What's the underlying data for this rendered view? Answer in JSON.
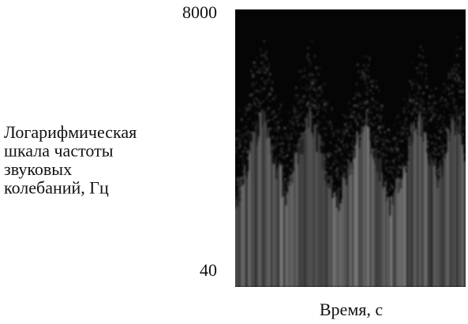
{
  "chart_data": {
    "type": "spectrogram",
    "ylabel": [
      "Логарифмическая",
      "шкала частоты",
      "звуковых",
      "колебаний, Гц"
    ],
    "xlabel": "Время, с",
    "ylim": [
      40,
      8000
    ],
    "yticks": [
      40,
      8000
    ],
    "log_y": true
  }
}
